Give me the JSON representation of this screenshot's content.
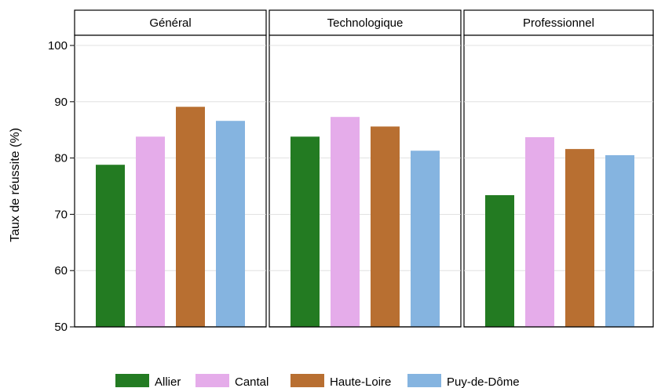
{
  "chart_data": {
    "type": "bar",
    "ylabel": "Taux de réussite (%)",
    "ylim": [
      50,
      100
    ],
    "yticks": [
      50,
      60,
      70,
      80,
      90,
      100
    ],
    "grid": true,
    "legend_position": "bottom",
    "series": [
      {
        "name": "Allier",
        "color": "#237b22"
      },
      {
        "name": "Cantal",
        "color": "#e5acea"
      },
      {
        "name": "Haute-Loire",
        "color": "#b86f31"
      },
      {
        "name": "Puy-de-Dôme",
        "color": "#85b4e0"
      }
    ],
    "panels": [
      {
        "label": "Général",
        "values": [
          78.8,
          83.8,
          89.1,
          86.6
        ]
      },
      {
        "label": "Technologique",
        "values": [
          83.8,
          87.3,
          85.6,
          81.3
        ]
      },
      {
        "label": "Professionnel",
        "values": [
          73.4,
          83.7,
          81.6,
          80.5
        ]
      }
    ]
  }
}
